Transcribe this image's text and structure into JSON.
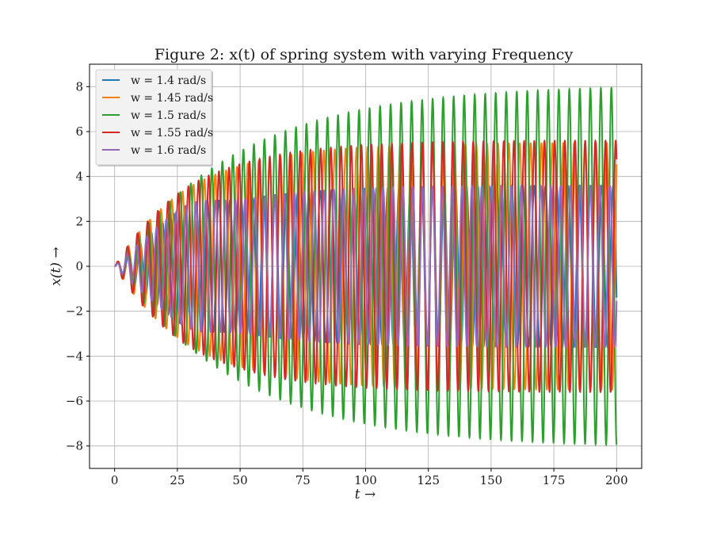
{
  "chart_data": {
    "type": "line",
    "title": "Figure 2: x(t) of spring system with varying Frequency",
    "xlabel": "t →",
    "ylabel": "x(t) →",
    "xlim": [
      -10,
      210
    ],
    "ylim": [
      -9,
      9
    ],
    "x_ticks": [
      0,
      25,
      50,
      75,
      100,
      125,
      150,
      175,
      200
    ],
    "x_tick_labels": [
      "0",
      "25",
      "50",
      "75",
      "100",
      "125",
      "150",
      "175",
      "200"
    ],
    "y_ticks": [
      -8,
      -6,
      -4,
      -2,
      0,
      2,
      4,
      6,
      8
    ],
    "y_tick_labels": [
      "−8",
      "−6",
      "−4",
      "−2",
      "0",
      "2",
      "4",
      "6",
      "8"
    ],
    "grid": true,
    "legend_position": "top-left",
    "t_range": [
      0,
      200
    ],
    "series": [
      {
        "name": "w = 1.4 rad/s",
        "w": 1.4,
        "color": "#1f77b4",
        "steady_amplitude": 3.6,
        "peak_amplitude": 4.4
      },
      {
        "name": "w = 1.45 rad/s",
        "w": 1.45,
        "color": "#ff7f0e",
        "steady_amplitude": 5.5,
        "peak_amplitude": 5.6
      },
      {
        "name": "w = 1.5 rad/s",
        "w": 1.5,
        "color": "#2ca02c",
        "steady_amplitude": 8.1,
        "peak_amplitude": 8.1
      },
      {
        "name": "w = 1.55 rad/s",
        "w": 1.55,
        "color": "#d62728",
        "steady_amplitude": 5.6,
        "peak_amplitude": 5.7
      },
      {
        "name": "w = 1.6 rad/s",
        "w": 1.6,
        "color": "#9467bd",
        "steady_amplitude": 3.6,
        "peak_amplitude": 4.4
      }
    ]
  }
}
